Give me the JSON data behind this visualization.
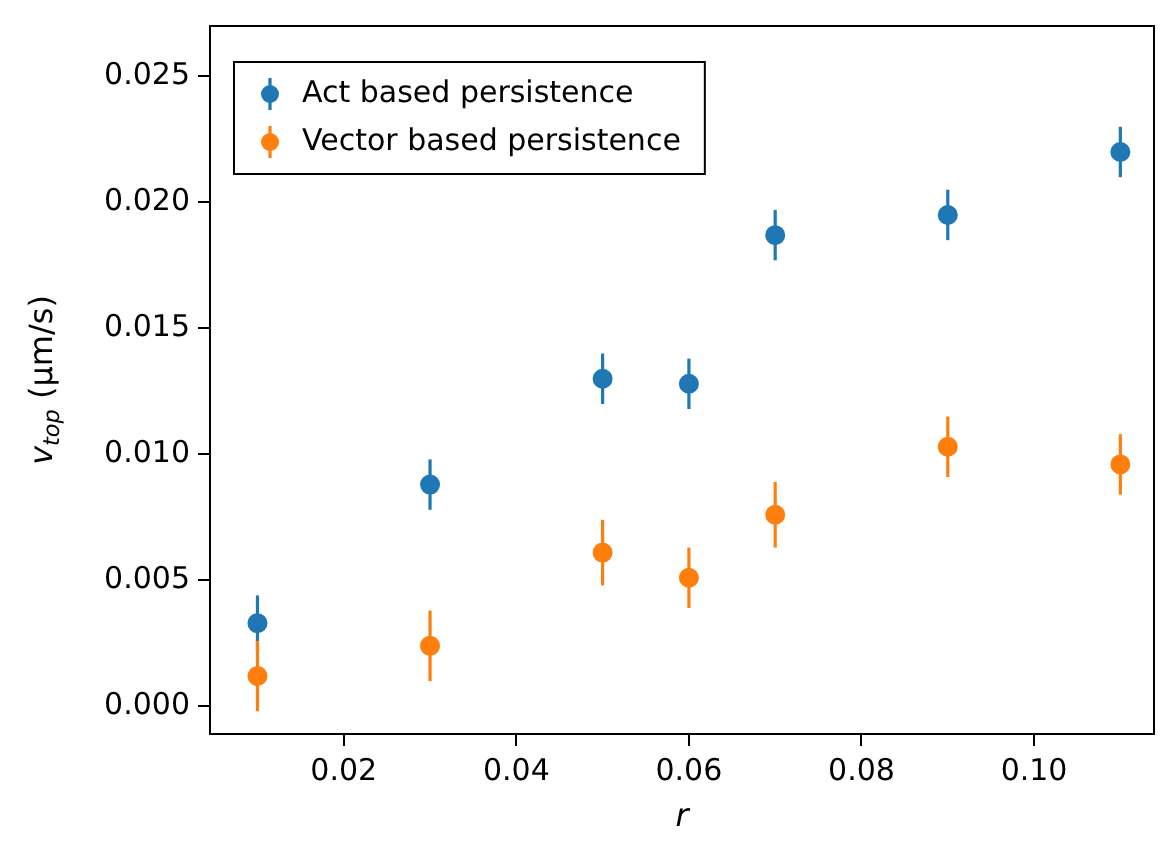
{
  "chart_data": {
    "type": "scatter",
    "xlabel": "r",
    "ylabel": "v$_{top}$ (μm/s)",
    "x": [
      0.01,
      0.03,
      0.05,
      0.06,
      0.07,
      0.09,
      0.11
    ],
    "series": [
      {
        "name": "Act based persistence",
        "color": "#1f77b4",
        "values": [
          0.0033,
          0.0088,
          0.013,
          0.0128,
          0.0187,
          0.0195,
          0.022
        ],
        "errors": [
          0.0011,
          0.001,
          0.001,
          0.001,
          0.001,
          0.001,
          0.001
        ]
      },
      {
        "name": "Vector based persistence",
        "color": "#ff7f0e",
        "values": [
          0.0012,
          0.0024,
          0.0061,
          0.0051,
          0.0076,
          0.0103,
          0.0096
        ],
        "errors": [
          0.0014,
          0.0014,
          0.0013,
          0.0012,
          0.0013,
          0.0012,
          0.0012
        ]
      }
    ],
    "xlim": [
      0.0045,
      0.1139
    ],
    "ylim": [
      -0.0011,
      0.027
    ],
    "xticks": [
      {
        "value": 0.02,
        "label": "0.02"
      },
      {
        "value": 0.04,
        "label": "0.04"
      },
      {
        "value": 0.06,
        "label": "0.06"
      },
      {
        "value": 0.08,
        "label": "0.08"
      },
      {
        "value": 0.1,
        "label": "0.10"
      }
    ],
    "yticks": [
      {
        "value": 0,
        "label": "0.000"
      },
      {
        "value": 0.005,
        "label": "0.005"
      },
      {
        "value": 0.01,
        "label": "0.010"
      },
      {
        "value": 0.015,
        "label": "0.015"
      },
      {
        "value": 0.02,
        "label": "0.020"
      },
      {
        "value": 0.025,
        "label": "0.025"
      }
    ],
    "grid": false,
    "legend": "top left",
    "marker": "circle"
  }
}
